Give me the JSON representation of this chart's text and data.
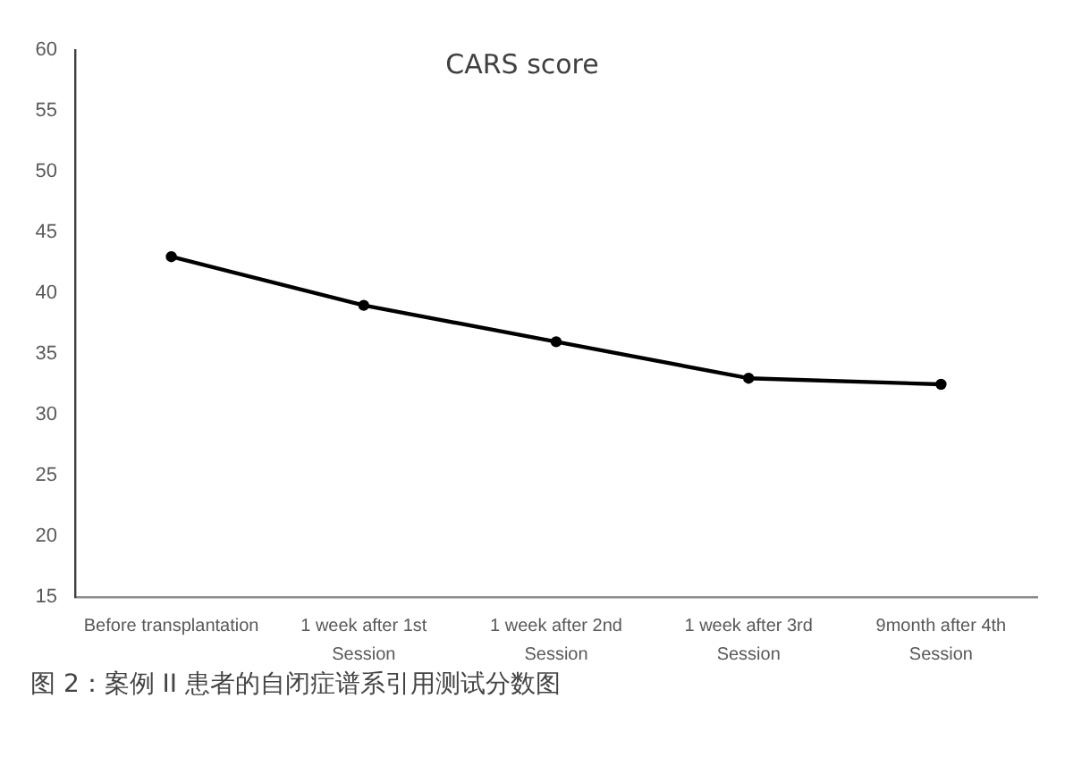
{
  "chart_data": {
    "type": "line",
    "title": "CARS score",
    "categories": [
      "Before transplantation",
      "1 week after 1st Session",
      "1 week after 2nd Session",
      "1 week after 3rd Session",
      "9month after 4th Session"
    ],
    "values": [
      43,
      39,
      36,
      33,
      32.5
    ],
    "color": "#000000",
    "ylim": [
      15,
      60
    ],
    "yticks": [
      15,
      20,
      25,
      30,
      35,
      40,
      45,
      50,
      55,
      60
    ],
    "grid": false,
    "legend": false,
    "marker": "circle",
    "line_style": "solid",
    "annotations": [
      "图 2：案例 II 患者的自闭症谱系引用测试分数图"
    ]
  }
}
